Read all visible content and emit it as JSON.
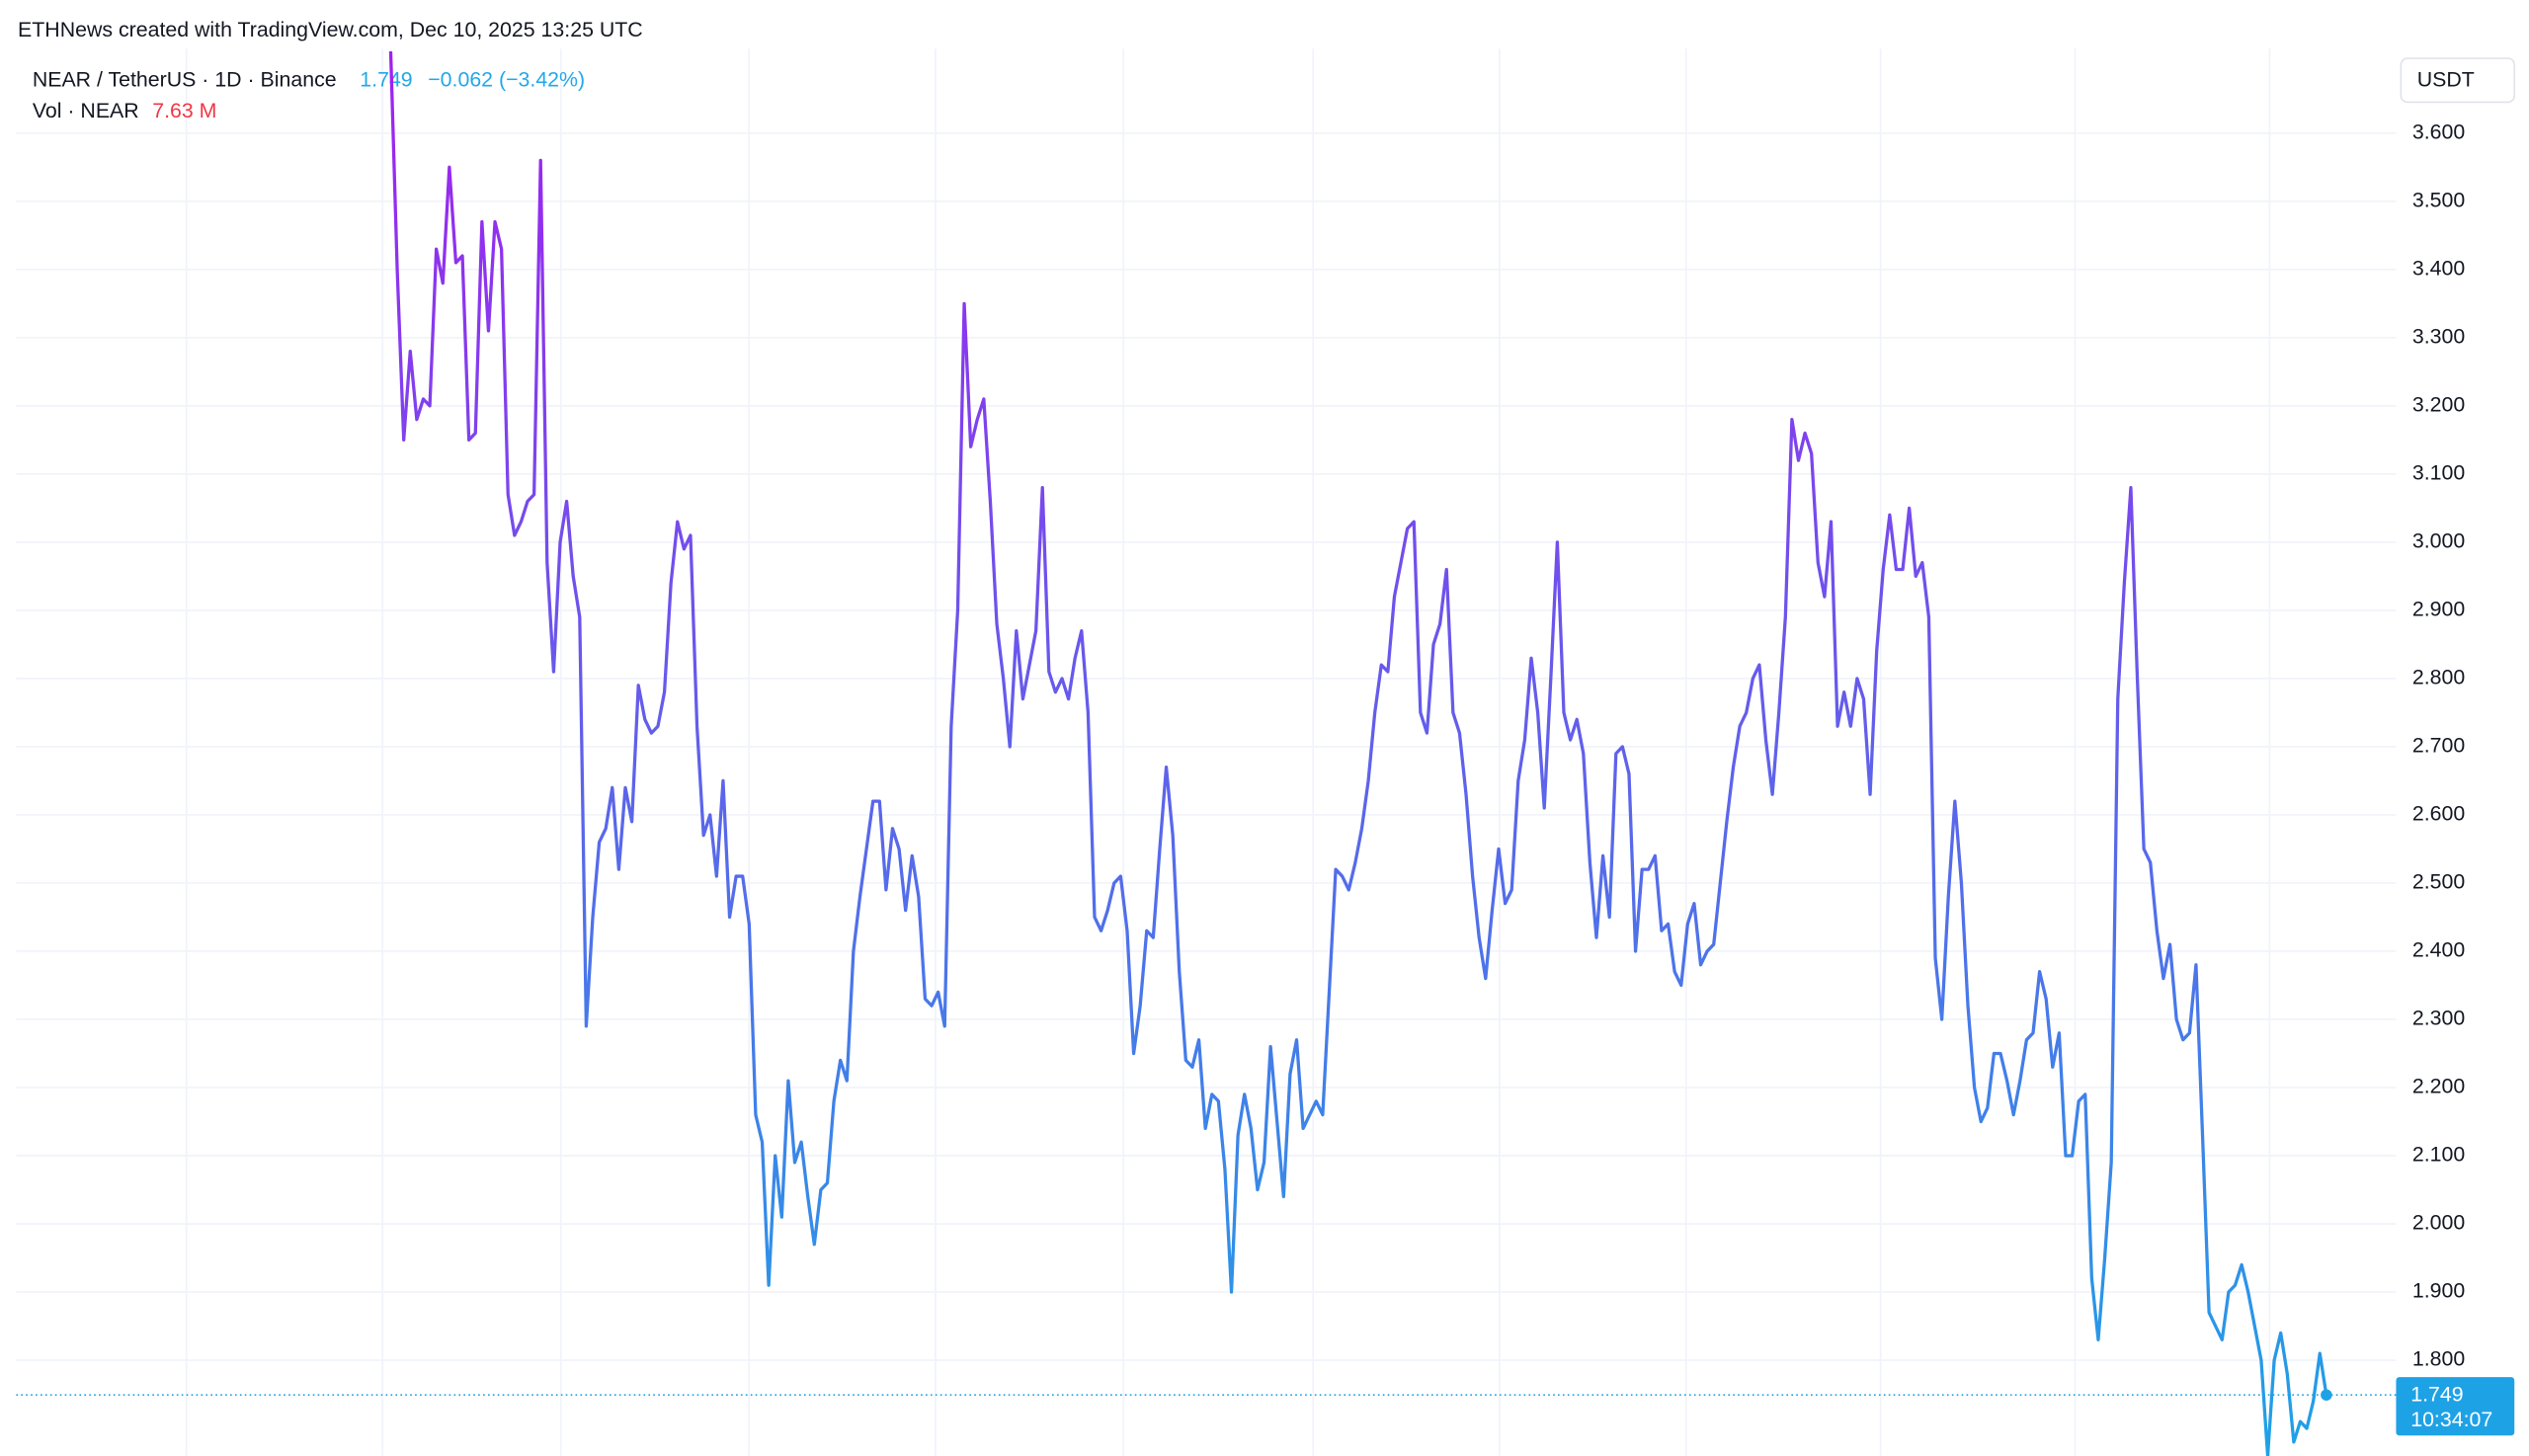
{
  "chart_data": {
    "type": "line",
    "credit": "ETHNews created with TradingView.com, Dec 10, 2025 13:25 UTC",
    "title": "NEAR / TetherUS · 1D · Binance",
    "last_price": 1.749,
    "change": "−0.062 (−3.42%)",
    "volume_label": "Vol · NEAR",
    "volume": "7.63 M",
    "currency": "USDT",
    "countdown": "10:34:07",
    "line_colors": [
      "#a21ff0",
      "#1ea2e6"
    ],
    "up_color": "#089981",
    "down_color": "#f23645",
    "grid": true,
    "ylim": [
      1.66,
      3.724
    ],
    "yticks": [
      {
        "value": 1.8,
        "label": "1.800"
      },
      {
        "value": 1.9,
        "label": "1.900"
      },
      {
        "value": 2.0,
        "label": "2.000"
      },
      {
        "value": 2.1,
        "label": "2.100"
      },
      {
        "value": 2.2,
        "label": "2.200"
      },
      {
        "value": 2.3,
        "label": "2.300"
      },
      {
        "value": 2.4,
        "label": "2.400"
      },
      {
        "value": 2.5,
        "label": "2.500"
      },
      {
        "value": 2.6,
        "label": "2.600"
      },
      {
        "value": 2.7,
        "label": "2.700"
      },
      {
        "value": 2.8,
        "label": "2.800"
      },
      {
        "value": 2.9,
        "label": "2.900"
      },
      {
        "value": 3.0,
        "label": "3.000"
      },
      {
        "value": 3.1,
        "label": "3.100"
      },
      {
        "value": 3.2,
        "label": "3.200"
      },
      {
        "value": 3.3,
        "label": "3.300"
      },
      {
        "value": 3.4,
        "label": "3.400"
      },
      {
        "value": 3.5,
        "label": "3.500"
      },
      {
        "value": 3.6,
        "label": "3.600"
      }
    ],
    "values": [
      3.72,
      3.4,
      3.15,
      3.28,
      3.18,
      3.21,
      3.2,
      3.43,
      3.38,
      3.55,
      3.41,
      3.42,
      3.15,
      3.16,
      3.47,
      3.31,
      3.47,
      3.43,
      3.07,
      3.01,
      3.03,
      3.06,
      3.07,
      3.56,
      2.97,
      2.81,
      3.0,
      3.06,
      2.95,
      2.89,
      2.29,
      2.45,
      2.56,
      2.58,
      2.64,
      2.52,
      2.64,
      2.59,
      2.79,
      2.74,
      2.72,
      2.73,
      2.78,
      2.94,
      3.03,
      2.99,
      3.01,
      2.73,
      2.57,
      2.6,
      2.51,
      2.65,
      2.45,
      2.51,
      2.51,
      2.44,
      2.16,
      2.12,
      1.91,
      2.1,
      2.01,
      2.21,
      2.09,
      2.12,
      2.04,
      1.97,
      2.05,
      2.06,
      2.18,
      2.24,
      2.21,
      2.4,
      2.48,
      2.55,
      2.62,
      2.62,
      2.49,
      2.58,
      2.55,
      2.46,
      2.54,
      2.48,
      2.33,
      2.32,
      2.34,
      2.29,
      2.73,
      2.9,
      3.35,
      3.14,
      3.18,
      3.21,
      3.06,
      2.88,
      2.8,
      2.7,
      2.87,
      2.77,
      2.82,
      2.87,
      3.08,
      2.81,
      2.78,
      2.8,
      2.77,
      2.83,
      2.87,
      2.75,
      2.45,
      2.43,
      2.46,
      2.5,
      2.51,
      2.43,
      2.25,
      2.32,
      2.43,
      2.42,
      2.55,
      2.67,
      2.57,
      2.37,
      2.24,
      2.23,
      2.27,
      2.14,
      2.19,
      2.18,
      2.08,
      1.9,
      2.13,
      2.19,
      2.14,
      2.05,
      2.09,
      2.26,
      2.15,
      2.04,
      2.22,
      2.27,
      2.14,
      2.16,
      2.18,
      2.16,
      2.34,
      2.52,
      2.51,
      2.49,
      2.53,
      2.58,
      2.65,
      2.75,
      2.82,
      2.81,
      2.92,
      2.97,
      3.02,
      3.03,
      2.75,
      2.72,
      2.85,
      2.88,
      2.96,
      2.75,
      2.72,
      2.63,
      2.51,
      2.42,
      2.36,
      2.46,
      2.55,
      2.47,
      2.49,
      2.65,
      2.71,
      2.83,
      2.75,
      2.61,
      2.8,
      3.0,
      2.75,
      2.71,
      2.74,
      2.69,
      2.53,
      2.42,
      2.54,
      2.45,
      2.69,
      2.7,
      2.66,
      2.4,
      2.52,
      2.52,
      2.54,
      2.43,
      2.44,
      2.37,
      2.35,
      2.44,
      2.47,
      2.38,
      2.4,
      2.41,
      2.5,
      2.59,
      2.67,
      2.73,
      2.75,
      2.8,
      2.82,
      2.71,
      2.63,
      2.75,
      2.89,
      3.18,
      3.12,
      3.16,
      3.13,
      2.97,
      2.92,
      3.03,
      2.73,
      2.78,
      2.73,
      2.8,
      2.77,
      2.63,
      2.84,
      2.96,
      3.04,
      2.96,
      2.96,
      3.05,
      2.95,
      2.97,
      2.89,
      2.39,
      2.3,
      2.48,
      2.62,
      2.5,
      2.32,
      2.2,
      2.15,
      2.17,
      2.25,
      2.25,
      2.21,
      2.16,
      2.21,
      2.27,
      2.28,
      2.37,
      2.33,
      2.23,
      2.28,
      2.1,
      2.1,
      2.18,
      2.19,
      1.92,
      1.83,
      1.95,
      2.09,
      2.77,
      2.94,
      3.08,
      2.8,
      2.55,
      2.53,
      2.43,
      2.36,
      2.41,
      2.3,
      2.27,
      2.28,
      2.38,
      2.13,
      1.87,
      1.85,
      1.83,
      1.9,
      1.91,
      1.94,
      1.9,
      1.85,
      1.8,
      1.66,
      1.8,
      1.84,
      1.78,
      1.68,
      1.71,
      1.7,
      1.74,
      1.81,
      1.749
    ]
  }
}
